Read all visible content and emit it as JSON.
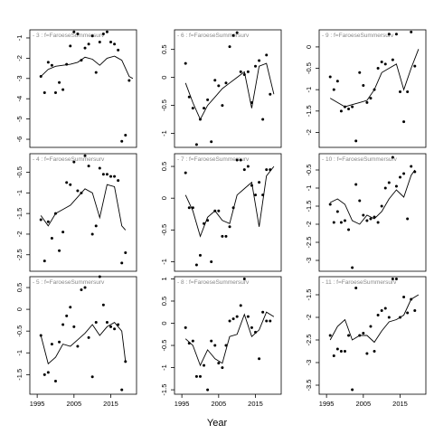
{
  "figure": {
    "xlabel": "Year",
    "line_color": "#000000",
    "header_text_color": "#888888",
    "xticks": [
      1995,
      2005,
      2015
    ]
  },
  "chart_data": [
    {
      "type": "line",
      "title": "3 : f=FaroeseSummersurv",
      "xlim": [
        1993,
        2022
      ],
      "ylim": [
        -6.4,
        -0.6
      ],
      "yticks": [
        -1,
        -2,
        -3,
        -4,
        -5,
        -6
      ],
      "series": [
        {
          "name": "smoothed",
          "x": [
            1996,
            1998,
            2000,
            2002,
            2004,
            2006,
            2008,
            2010,
            2012,
            2014,
            2016,
            2018,
            2020,
            2021
          ],
          "y": [
            -2.9,
            -2.55,
            -2.4,
            -2.35,
            -2.3,
            -2.2,
            -1.95,
            -2.05,
            -2.35,
            -2.0,
            -1.9,
            -2.1,
            -2.9,
            -3.0
          ]
        },
        {
          "name": "points",
          "x": [
            1996,
            1997,
            1998,
            1999,
            2000,
            2001,
            2002,
            2003,
            2004,
            2005,
            2006,
            2007,
            2008,
            2009,
            2010,
            2011,
            2012,
            2013,
            2014,
            2015,
            2016,
            2017,
            2018,
            2019,
            2020
          ],
          "y": [
            -2.9,
            -3.7,
            -2.2,
            -2.35,
            -3.7,
            -3.2,
            -3.55,
            -2.3,
            -1.4,
            -0.7,
            -0.8,
            -2.1,
            -1.5,
            -1.3,
            -0.9,
            -2.7,
            -1.2,
            -0.8,
            -0.7,
            -1.2,
            -1.3,
            -1.6,
            -6.1,
            -5.8,
            -3.1
          ]
        }
      ]
    },
    {
      "type": "line",
      "title": "6 : f=FaroeseSummersurv",
      "xlim": [
        1993,
        2022
      ],
      "ylim": [
        -1.25,
        0.85
      ],
      "yticks": [
        0.5,
        0.0,
        -0.5,
        -1.0
      ],
      "series": [
        {
          "name": "smoothed",
          "x": [
            1996,
            1998,
            2000,
            2002,
            2004,
            2006,
            2008,
            2010,
            2012,
            2014,
            2016,
            2018,
            2020
          ],
          "y": [
            -0.1,
            -0.45,
            -0.75,
            -0.5,
            -0.35,
            -0.2,
            -0.1,
            0.0,
            0.1,
            -0.55,
            0.2,
            0.25,
            -0.3
          ]
        },
        {
          "name": "points",
          "x": [
            1996,
            1997,
            1998,
            1999,
            2000,
            2001,
            2002,
            2003,
            2004,
            2005,
            2006,
            2007,
            2008,
            2009,
            2010,
            2011,
            2012,
            2013,
            2014,
            2015,
            2016,
            2017,
            2018,
            2019
          ],
          "y": [
            0.25,
            -0.35,
            -0.55,
            -1.2,
            -0.75,
            -0.55,
            -0.4,
            -1.15,
            -0.05,
            -0.15,
            -0.5,
            -0.1,
            0.55,
            0.75,
            0.8,
            0.1,
            0.05,
            0.1,
            -0.45,
            0.2,
            0.3,
            -0.75,
            0.4,
            -0.3
          ]
        }
      ]
    },
    {
      "type": "line",
      "title": "9 : f=FaroeseSummersurv",
      "xlim": [
        1993,
        2022
      ],
      "ylim": [
        -2.35,
        0.4
      ],
      "yticks": [
        0.0,
        -0.5,
        -1.0,
        -1.5,
        -2.0
      ],
      "series": [
        {
          "name": "smoothed",
          "x": [
            1996,
            1998,
            2000,
            2002,
            2004,
            2006,
            2008,
            2010,
            2012,
            2014,
            2016,
            2018,
            2020
          ],
          "y": [
            -1.2,
            -1.3,
            -1.4,
            -1.35,
            -1.3,
            -1.25,
            -1.0,
            -0.6,
            -0.5,
            -0.4,
            -1.0,
            -0.5,
            -0.05
          ]
        },
        {
          "name": "points",
          "x": [
            1996,
            1997,
            1998,
            1999,
            2000,
            2001,
            2002,
            2003,
            2004,
            2005,
            2006,
            2007,
            2008,
            2009,
            2010,
            2011,
            2012,
            2013,
            2014,
            2015,
            2016,
            2017,
            2018,
            2019
          ],
          "y": [
            -0.7,
            -1.0,
            -0.8,
            -1.5,
            -1.4,
            -1.45,
            -1.4,
            -2.2,
            -0.6,
            -0.9,
            -1.3,
            -1.2,
            -1.0,
            -0.5,
            -0.35,
            -0.4,
            0.3,
            -0.3,
            0.3,
            -1.05,
            -1.75,
            -1.05,
            0.35,
            -0.45
          ]
        }
      ]
    },
    {
      "type": "line",
      "title": "4 : f=FaroeseSummersurv",
      "xlim": [
        1993,
        2022
      ],
      "ylim": [
        -2.9,
        -0.05
      ],
      "yticks": [
        -0.5,
        -1.0,
        -1.5,
        -2.0,
        -2.5
      ],
      "series": [
        {
          "name": "smoothed",
          "x": [
            1996,
            1998,
            2000,
            2002,
            2004,
            2006,
            2008,
            2010,
            2012,
            2014,
            2016,
            2018,
            2019
          ],
          "y": [
            -1.55,
            -1.8,
            -1.5,
            -1.4,
            -1.3,
            -1.1,
            -0.9,
            -1.0,
            -1.6,
            -0.8,
            -0.85,
            -1.8,
            -1.9
          ]
        },
        {
          "name": "points",
          "x": [
            1996,
            1997,
            1998,
            1999,
            2000,
            2001,
            2002,
            2003,
            2004,
            2005,
            2006,
            2007,
            2008,
            2009,
            2010,
            2011,
            2012,
            2013,
            2014,
            2015,
            2016,
            2017,
            2018,
            2019
          ],
          "y": [
            -1.65,
            -2.65,
            -1.7,
            -2.1,
            -1.5,
            -2.4,
            -1.95,
            -0.75,
            -0.8,
            -0.25,
            -0.95,
            -1.0,
            -0.1,
            -0.35,
            -2.0,
            -1.8,
            -0.4,
            -0.55,
            -0.55,
            -0.6,
            -0.6,
            -0.7,
            -2.7,
            -2.45
          ]
        }
      ]
    },
    {
      "type": "line",
      "title": "7 : f=FaroeseSummersurv",
      "xlim": [
        1993,
        2022
      ],
      "ylim": [
        -1.15,
        0.7
      ],
      "yticks": [
        0.5,
        0.0,
        -0.5,
        -1.0
      ],
      "series": [
        {
          "name": "smoothed",
          "x": [
            1996,
            1998,
            2000,
            2002,
            2004,
            2006,
            2008,
            2010,
            2012,
            2014,
            2016,
            2018,
            2020
          ],
          "y": [
            0.05,
            -0.2,
            -0.6,
            -0.3,
            -0.2,
            -0.35,
            -0.4,
            0.05,
            0.15,
            0.25,
            -0.45,
            0.35,
            0.5
          ]
        },
        {
          "name": "points",
          "x": [
            1996,
            1997,
            1998,
            1999,
            2000,
            2001,
            2002,
            2003,
            2004,
            2005,
            2006,
            2007,
            2008,
            2009,
            2010,
            2011,
            2012,
            2013,
            2014,
            2015,
            2016,
            2017,
            2018,
            2019
          ],
          "y": [
            0.4,
            -0.15,
            -0.15,
            -1.05,
            -0.9,
            -0.4,
            -0.35,
            -1.0,
            -0.2,
            -0.2,
            -0.6,
            -0.6,
            -0.45,
            -0.15,
            0.6,
            0.6,
            0.45,
            0.5,
            0.2,
            0.05,
            0.25,
            0.05,
            0.45,
            0.45
          ]
        }
      ]
    },
    {
      "type": "line",
      "title": "10 : f=FaroeseSummersurv",
      "xlim": [
        1993,
        2022
      ],
      "ylim": [
        -3.3,
        -0.05
      ],
      "yticks": [
        -0.5,
        -1.0,
        -1.5,
        -2.0,
        -2.5,
        -3.0
      ],
      "series": [
        {
          "name": "smoothed",
          "x": [
            1996,
            1998,
            2000,
            2002,
            2004,
            2006,
            2008,
            2010,
            2012,
            2014,
            2016,
            2018,
            2019
          ],
          "y": [
            -1.4,
            -1.3,
            -1.45,
            -1.9,
            -2.0,
            -1.75,
            -1.85,
            -1.65,
            -1.3,
            -1.05,
            -1.25,
            -0.65,
            -0.5
          ]
        },
        {
          "name": "points",
          "x": [
            1996,
            1997,
            1998,
            1999,
            2000,
            2001,
            2002,
            2003,
            2004,
            2005,
            2006,
            2007,
            2008,
            2009,
            2010,
            2011,
            2012,
            2013,
            2014,
            2015,
            2016,
            2017,
            2018,
            2019
          ],
          "y": [
            -1.45,
            -1.95,
            -1.65,
            -1.95,
            -1.9,
            -2.15,
            -3.2,
            -0.9,
            -1.35,
            -1.75,
            -1.9,
            -1.85,
            -1.8,
            -1.95,
            -1.5,
            -1.0,
            -0.85,
            -0.15,
            -0.95,
            -0.7,
            -0.6,
            -1.85,
            -0.4,
            -0.55
          ]
        }
      ]
    },
    {
      "type": "line",
      "title": "5 : f=FaroeseSummersurv",
      "xlim": [
        1993,
        2022
      ],
      "ylim": [
        -1.95,
        0.75
      ],
      "yticks": [
        0.5,
        0.0,
        -0.5,
        -1.0,
        -1.5
      ],
      "series": [
        {
          "name": "smoothed",
          "x": [
            1996,
            1998,
            2000,
            2002,
            2004,
            2006,
            2008,
            2010,
            2012,
            2014,
            2016,
            2018,
            2019
          ],
          "y": [
            -0.6,
            -1.25,
            -1.1,
            -0.8,
            -0.85,
            -0.7,
            -0.55,
            -0.35,
            -0.6,
            -0.4,
            -0.3,
            -0.5,
            -1.2
          ]
        },
        {
          "name": "points",
          "x": [
            1996,
            1997,
            1998,
            1999,
            2000,
            2001,
            2002,
            2003,
            2004,
            2005,
            2006,
            2007,
            2008,
            2009,
            2010,
            2011,
            2012,
            2013,
            2014,
            2015,
            2016,
            2017,
            2018,
            2019
          ],
          "y": [
            -0.6,
            -1.5,
            -1.45,
            -0.8,
            -1.65,
            -0.75,
            -0.35,
            -0.15,
            0.05,
            -0.4,
            -0.85,
            0.45,
            0.5,
            -0.65,
            -1.55,
            -0.3,
            0.75,
            0.1,
            -0.3,
            -0.4,
            -0.45,
            -0.35,
            -1.85,
            -1.2
          ]
        }
      ]
    },
    {
      "type": "line",
      "title": "8 : f=FaroeseSummersurv",
      "xlim": [
        1993,
        2022
      ],
      "ylim": [
        -1.6,
        1.05
      ],
      "yticks": [
        1.0,
        0.5,
        0.0,
        -0.5,
        -1.0,
        -1.5
      ],
      "series": [
        {
          "name": "smoothed",
          "x": [
            1996,
            1998,
            2000,
            2002,
            2004,
            2006,
            2008,
            2010,
            2012,
            2014,
            2016,
            2018,
            2020
          ],
          "y": [
            -0.35,
            -0.5,
            -0.95,
            -0.6,
            -0.8,
            -0.9,
            -0.3,
            -0.25,
            0.2,
            -0.3,
            -0.15,
            0.25,
            0.15
          ]
        },
        {
          "name": "points",
          "x": [
            1996,
            1997,
            1998,
            1999,
            2000,
            2001,
            2002,
            2003,
            2004,
            2005,
            2006,
            2007,
            2008,
            2009,
            2010,
            2011,
            2012,
            2013,
            2014,
            2015,
            2016,
            2017,
            2018,
            2019
          ],
          "y": [
            -0.1,
            -0.45,
            -0.4,
            -1.2,
            -1.2,
            -0.95,
            -1.5,
            -0.4,
            -0.5,
            -0.9,
            -1.0,
            -0.5,
            0.05,
            0.1,
            0.15,
            0.4,
            1.0,
            0.15,
            -0.1,
            -0.2,
            -0.8,
            0.25,
            0.05,
            0.05
          ]
        }
      ]
    },
    {
      "type": "line",
      "title": "11 : f=FaroeseSummersurv",
      "xlim": [
        1993,
        2022
      ],
      "ylim": [
        -3.7,
        -1.1
      ],
      "yticks": [
        -1.5,
        -2.0,
        -2.5,
        -3.0,
        -3.5
      ],
      "series": [
        {
          "name": "smoothed",
          "x": [
            1996,
            1998,
            2000,
            2002,
            2004,
            2006,
            2008,
            2010,
            2012,
            2014,
            2016,
            2018,
            2020
          ],
          "y": [
            -2.5,
            -2.2,
            -2.05,
            -2.5,
            -2.4,
            -2.4,
            -2.55,
            -2.3,
            -2.1,
            -2.05,
            -1.95,
            -1.6,
            -1.5
          ]
        },
        {
          "name": "points",
          "x": [
            1996,
            1997,
            1998,
            1999,
            2000,
            2001,
            2002,
            2003,
            2004,
            2005,
            2006,
            2007,
            2008,
            2009,
            2010,
            2011,
            2012,
            2013,
            2014,
            2015,
            2016,
            2017,
            2018,
            2019
          ],
          "y": [
            -2.4,
            -2.85,
            -2.7,
            -2.75,
            -2.75,
            -2.4,
            -3.6,
            -1.35,
            -2.4,
            -2.35,
            -2.8,
            -2.2,
            -2.75,
            -1.95,
            -1.85,
            -1.8,
            -2.0,
            -1.15,
            -1.15,
            -2.0,
            -1.55,
            -1.9,
            -1.6,
            -1.85
          ]
        }
      ]
    }
  ]
}
